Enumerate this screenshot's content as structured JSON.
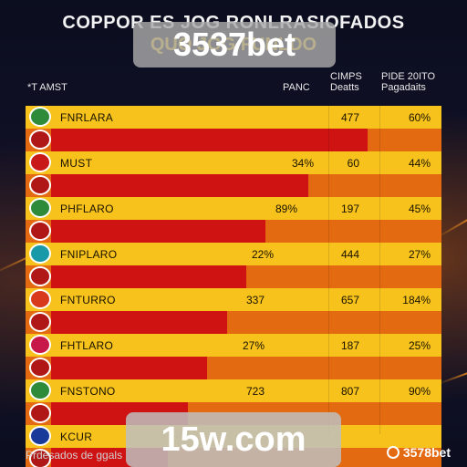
{
  "header": {
    "title_line1": "COPPOR ES JOG RONLRASIOFADOS",
    "title_line2": "QUO JOG FUNLDO",
    "brand_badge": "3537bet"
  },
  "columns": {
    "team": "*T AMST",
    "pct1": "PANC",
    "val": "CIMPS\nDeatts",
    "pct2": "PIDE 20ITO\nPagadaits"
  },
  "colors": {
    "light_row": "#f6c21b",
    "dark_row": "#e46a11",
    "bar": "#cf1313",
    "background": "#0d1022"
  },
  "chart_data": {
    "type": "table",
    "rows": [
      {
        "team": "FNRLARA",
        "logo_color": "#2e8b3a",
        "pct1": "",
        "val": "477",
        "pct2": "60%",
        "bar": 0.81
      },
      {
        "team": "MUST",
        "logo_color": "#c81818",
        "pct1": "34%",
        "val": "60",
        "pct2": "44%",
        "bar": 0.66
      },
      {
        "team": "PHFLARO",
        "logo_color": "#2e8b3a",
        "pct1": "89%",
        "val": "197",
        "pct2": "45%",
        "bar": 0.55
      },
      {
        "team": "FNIPLARO",
        "logo_color": "#1a9aa8",
        "pct1": "22%",
        "val": "444",
        "pct2": "27%",
        "bar": 0.5
      },
      {
        "team": "FNTURRO",
        "logo_color": "#d8381c",
        "pct1": "337",
        "val": "657",
        "pct2": "184%",
        "bar": 0.45
      },
      {
        "team": "FHTLARO",
        "logo_color": "#c8184a",
        "pct1": "27%",
        "val": "187",
        "pct2": "25%",
        "bar": 0.4
      },
      {
        "team": "FNSTONO",
        "logo_color": "#2e8b3a",
        "pct1": "723",
        "val": "807",
        "pct2": "90%",
        "bar": 0.35
      },
      {
        "team": "KCUR",
        "logo_color": "#1a3a9a",
        "pct1": "",
        "val": "",
        "pct2": "",
        "bar": 0.3
      }
    ]
  },
  "footer": {
    "left_text": "Prdesados de ggals",
    "watermark": "15w.com",
    "right_brand": "3578bet"
  }
}
